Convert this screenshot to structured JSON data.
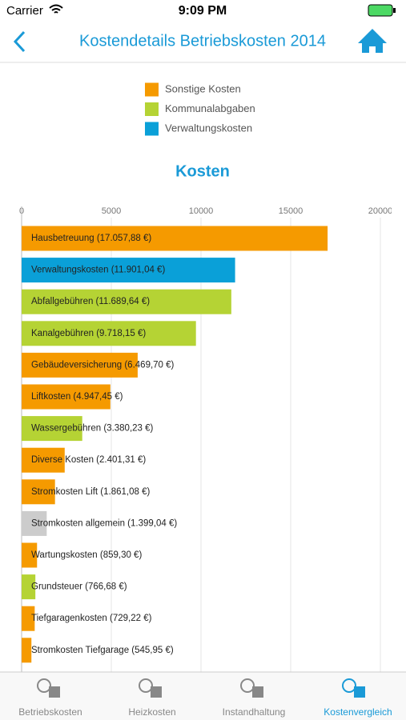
{
  "status_bar": {
    "carrier": "Carrier",
    "time": "9:09 PM"
  },
  "nav": {
    "title": "Kostendetails Betriebskosten 2014"
  },
  "chart_data": {
    "type": "hbar",
    "title": "Kosten",
    "legend": [
      {
        "name": "Sonstige Kosten",
        "color": "#f59a00"
      },
      {
        "name": "Kommunalabgaben",
        "color": "#b5d334"
      },
      {
        "name": "Verwaltungskosten",
        "color": "#0aa0d8"
      }
    ],
    "categories": [
      "Hausbetreuung (17.057,88 €)",
      "Verwaltungskosten (11.901,04 €)",
      "Abfallgebühren (11.689,64 €)",
      "Kanalgebühren (9.718,15 €)",
      "Gebäudeversicherung (6.469,70 €)",
      "Liftkosten (4.947,45 €)",
      "Wassergebühren (3.380,23 €)",
      "Diverse Kosten (2.401,31 €)",
      "Stromkosten Lift (1.861,08 €)",
      "Stromkosten allgemein (1.399,04 €)",
      "Wartungskosten (859,30 €)",
      "Grundsteuer (766,68 €)",
      "Tiefgaragenkosten (729,22 €)",
      "Stromkosten Tiefgarage (545,95 €)"
    ],
    "values": [
      17057.88,
      11901.04,
      11689.64,
      9718.15,
      6469.7,
      4947.45,
      3380.23,
      2401.31,
      1861.08,
      1399.04,
      859.3,
      766.68,
      729.22,
      545.95
    ],
    "colors": [
      "#f59a00",
      "#0aa0d8",
      "#b5d334",
      "#b5d334",
      "#f59a00",
      "#f59a00",
      "#b5d334",
      "#f59a00",
      "#f59a00",
      "#cccccc",
      "#f59a00",
      "#b5d334",
      "#f59a00",
      "#f59a00"
    ],
    "xlim": [
      0,
      20000
    ],
    "xticks": [
      0,
      5000,
      10000,
      15000,
      20000
    ],
    "grid": true
  },
  "tab_bar": {
    "items": [
      "Betriebskosten",
      "Heizkosten",
      "Instandhaltung",
      "Kostenvergleich"
    ],
    "active": 3
  }
}
